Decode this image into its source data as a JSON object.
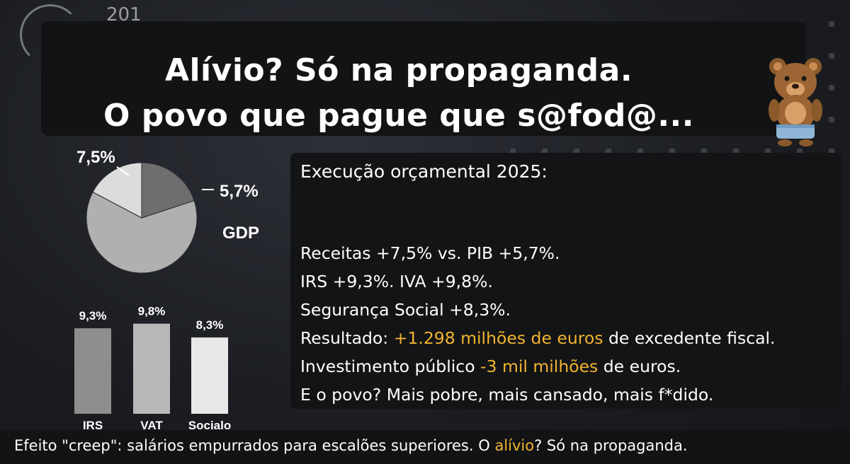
{
  "deco": {
    "corner_number": "201"
  },
  "headline": {
    "line1": "Alívio? Só na propaganda.",
    "line2": "O povo que pague que s@fod@...",
    "emoji": "bear-emoji"
  },
  "chart_data": [
    {
      "type": "pie",
      "labels": [
        "7,5%",
        "5,7%"
      ],
      "values": [
        7.5,
        5.7
      ],
      "annotation": "GDP",
      "colors": [
        "#dcdcdc",
        "#6e6e6e",
        "#b0b0b0"
      ]
    },
    {
      "type": "bar",
      "categories": [
        "IRS",
        "VAT",
        "Socialo"
      ],
      "values": [
        9.3,
        9.8,
        8.3
      ],
      "value_labels": [
        "9,3%",
        "9,8%",
        "8,3%"
      ],
      "colors": [
        "#8e8e8e",
        "#b8b8b8",
        "#e8e8e8"
      ]
    }
  ],
  "panel": {
    "title": "Execução orçamental 2025:",
    "line1": "Receitas +7,5% vs. PIB +5,7%.",
    "line2": "IRS +9,3%. IVA +9,8%.",
    "line3": "Segurança Social +8,3%.",
    "line4_pre": "Resultado: ",
    "line4_hl": "+1.298 milhões de euros",
    "line4_post": " de excedente fiscal.",
    "line5_pre": "Investimento público ",
    "line5_hl": "-3 mil milhões",
    "line5_post": " de euros.",
    "line6": "E o povo? Mais pobre, mais cansado, mais f*dido.",
    "accent_color": "#f2b430"
  },
  "footer": {
    "pre": "Efeito \"creep\": salários empurrados para escalões superiores. O ",
    "hl": "alívio",
    "post": "? Só na propaganda."
  }
}
